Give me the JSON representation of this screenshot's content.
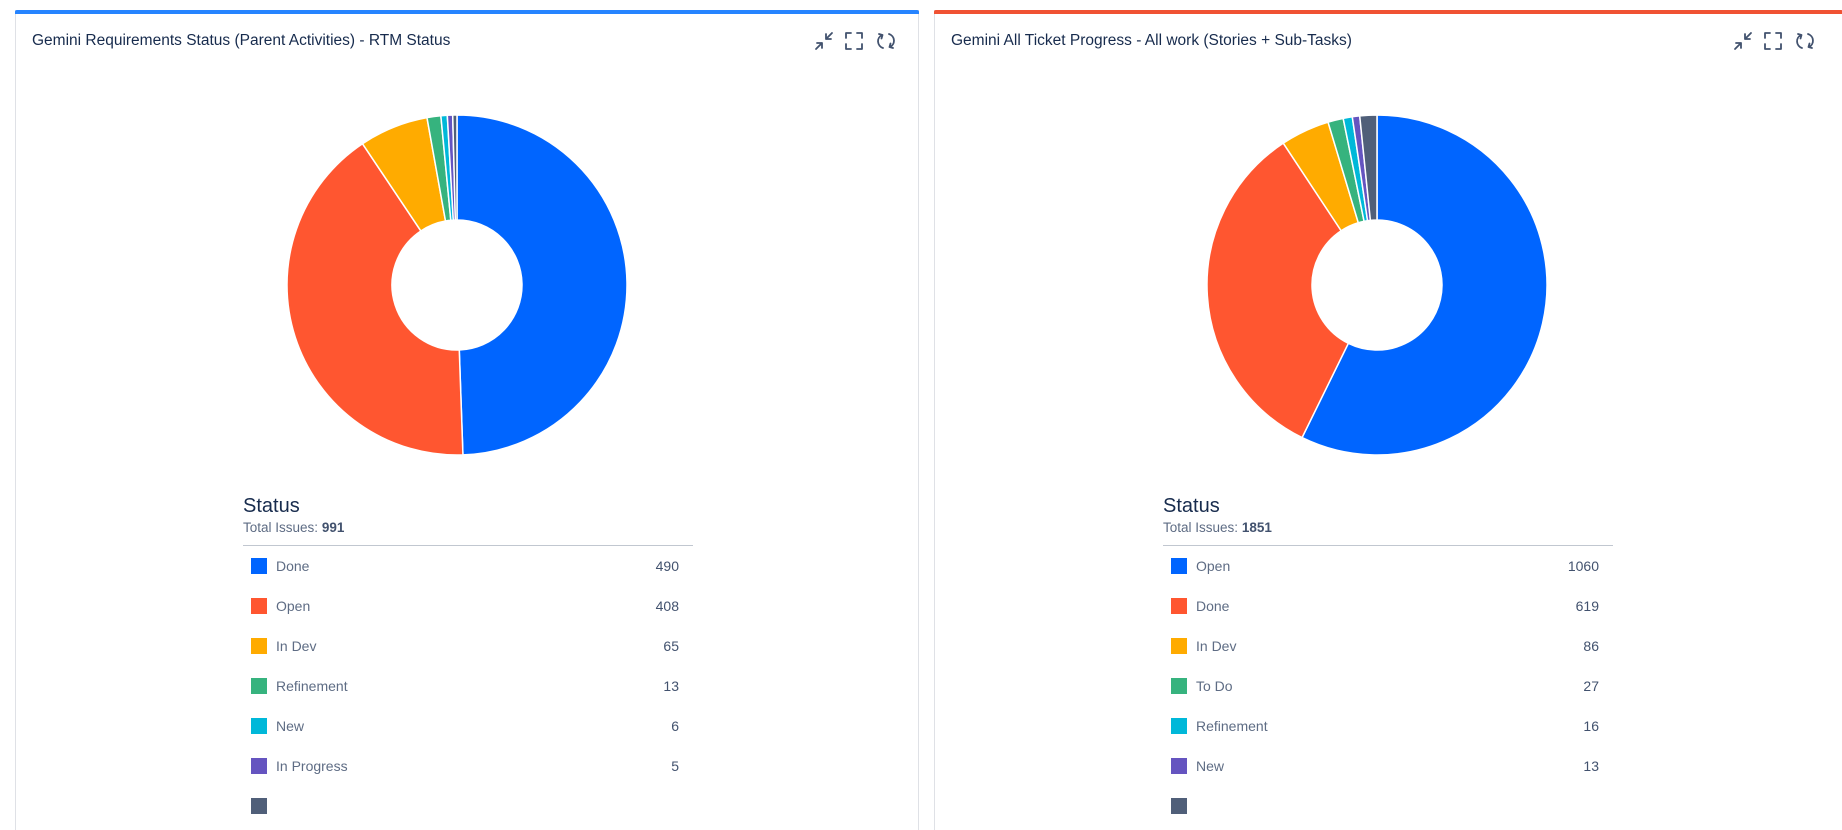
{
  "panels": [
    {
      "title": "Gemini Requirements Status (Parent Activities) - RTM Status",
      "accent_color": "#2684ff",
      "legend_heading": "Status",
      "total_label": "Total Issues:",
      "total_value": "991",
      "icons": [
        "minimize-icon",
        "fullscreen-icon",
        "refresh-icon"
      ]
    },
    {
      "title": "Gemini All Ticket Progress - All work (Stories + Sub-Tasks)",
      "accent_color": "#f05233",
      "legend_heading": "Status",
      "total_label": "Total Issues:",
      "total_value": "1851",
      "icons": [
        "minimize-icon",
        "fullscreen-icon",
        "refresh-icon"
      ]
    }
  ],
  "chart_data": [
    {
      "type": "pie",
      "title": "Gemini Requirements Status (Parent Activities) - RTM Status",
      "total": 991,
      "slices": [
        {
          "label": "Done",
          "value": 490,
          "color": "#0065ff"
        },
        {
          "label": "Open",
          "value": 408,
          "color": "#ff5630"
        },
        {
          "label": "In Dev",
          "value": 65,
          "color": "#ffab00"
        },
        {
          "label": "Refinement",
          "value": 13,
          "color": "#36b37e"
        },
        {
          "label": "New",
          "value": 6,
          "color": "#00b8d9"
        },
        {
          "label": "In Progress",
          "value": 5,
          "color": "#6554c0"
        },
        {
          "label": "",
          "value": 4,
          "color": "#505f79"
        }
      ]
    },
    {
      "type": "pie",
      "title": "Gemini All Ticket Progress - All work (Stories + Sub-Tasks)",
      "total": 1851,
      "slices": [
        {
          "label": "Open",
          "value": 1060,
          "color": "#0065ff"
        },
        {
          "label": "Done",
          "value": 619,
          "color": "#ff5630"
        },
        {
          "label": "In Dev",
          "value": 86,
          "color": "#ffab00"
        },
        {
          "label": "To Do",
          "value": 27,
          "color": "#36b37e"
        },
        {
          "label": "Refinement",
          "value": 16,
          "color": "#00b8d9"
        },
        {
          "label": "New",
          "value": 13,
          "color": "#6554c0"
        },
        {
          "label": "",
          "value": 30,
          "color": "#505f79"
        }
      ]
    }
  ]
}
